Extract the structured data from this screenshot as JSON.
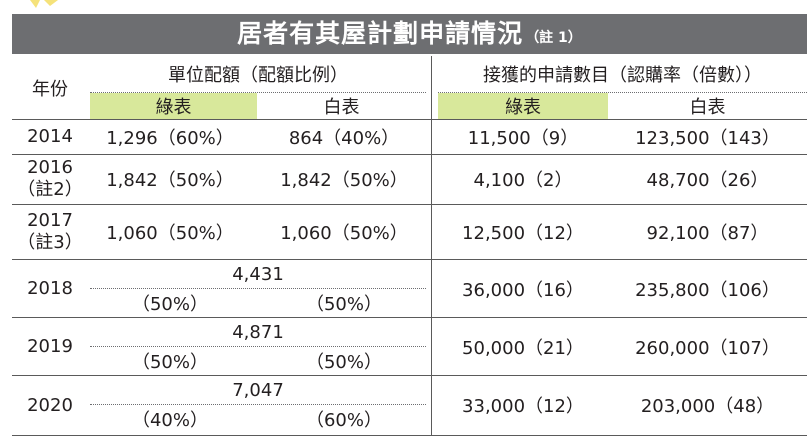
{
  "title": {
    "main": "居者有其屋計劃申請情況",
    "note": "（註 1）"
  },
  "headers": {
    "year": "年份",
    "units_group": "單位配額（配額比例）",
    "apps_group": "接獲的申請數目（認購率（倍數））",
    "green": "綠表",
    "white": "白表"
  },
  "rows": [
    {
      "year": "2014",
      "note": "",
      "units_green": "1,296（60%）",
      "units_white": "864（40%）",
      "apps_green": "11,500（9）",
      "apps_white": "123,500（143）"
    },
    {
      "year": "2016",
      "note": "（註2）",
      "units_green": "1,842（50%）",
      "units_white": "1,842（50%）",
      "apps_green": "4,100（2）",
      "apps_white": "48,700（26）"
    },
    {
      "year": "2017",
      "note": "（註3）",
      "units_green": "1,060（50%）",
      "units_white": "1,060（50%）",
      "apps_green": "12,500（12）",
      "apps_white": "92,100（87）"
    },
    {
      "year": "2018",
      "units_total": "4,431",
      "units_green": "（50%）",
      "units_white": "（50%）",
      "apps_green": "36,000（16）",
      "apps_white": "235,800（106）"
    },
    {
      "year": "2019",
      "units_total": "4,871",
      "units_green": "（50%）",
      "units_white": "（50%）",
      "apps_green": "50,000（21）",
      "apps_white": "260,000（107）"
    },
    {
      "year": "2020",
      "units_total": "7,047",
      "units_green": "（40%）",
      "units_white": "（60%）",
      "apps_green": "33,000（12）",
      "apps_white": "203,000（48）"
    }
  ],
  "colors": {
    "title_bg": "#6d6e71",
    "green_header": "#d8e89b"
  }
}
